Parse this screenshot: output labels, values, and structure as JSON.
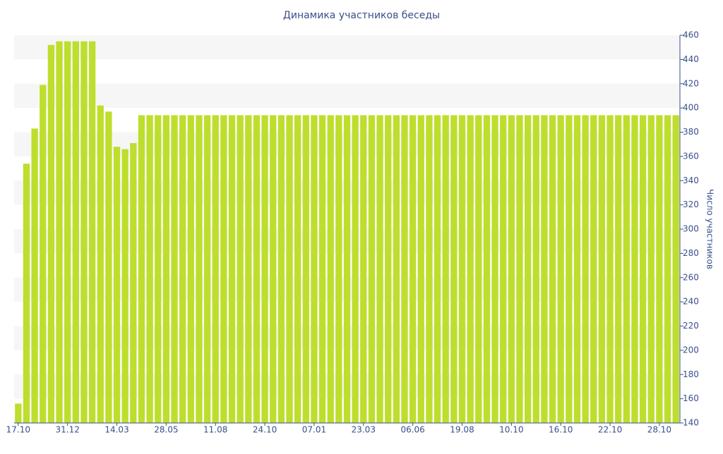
{
  "chart_data": {
    "type": "bar",
    "title": "Динамика участников беседы",
    "y_axis_label": "Число участников",
    "categories": [
      "17.10",
      null,
      null,
      null,
      null,
      null,
      "31.12",
      null,
      null,
      null,
      null,
      null,
      "14.03",
      null,
      null,
      null,
      null,
      null,
      "28.05",
      null,
      null,
      null,
      null,
      null,
      "11.08",
      null,
      null,
      null,
      null,
      null,
      "24.10",
      null,
      null,
      null,
      null,
      null,
      "07.01",
      null,
      null,
      null,
      null,
      null,
      "23.03",
      null,
      null,
      null,
      null,
      null,
      "06.06",
      null,
      null,
      null,
      null,
      null,
      "19.08",
      null,
      null,
      null,
      null,
      null,
      "10.10",
      null,
      null,
      null,
      null,
      null,
      "16.10",
      null,
      null,
      null,
      null,
      null,
      "22.10",
      null,
      null,
      null,
      null,
      null,
      "28.10",
      null,
      null
    ],
    "values": [
      156,
      354,
      383,
      419,
      452,
      455,
      455,
      455,
      455,
      455,
      402,
      397,
      368,
      366,
      371,
      394,
      394,
      394,
      394,
      394,
      394,
      394,
      394,
      394,
      394,
      394,
      394,
      394,
      394,
      394,
      394,
      394,
      394,
      394,
      394,
      394,
      394,
      394,
      394,
      394,
      394,
      394,
      394,
      394,
      394,
      394,
      394,
      394,
      394,
      394,
      394,
      394,
      394,
      394,
      394,
      394,
      394,
      394,
      394,
      394,
      394,
      394,
      394,
      394,
      394,
      394,
      394,
      394,
      394,
      394,
      394,
      394,
      394,
      394,
      394,
      394,
      394,
      394,
      394,
      394,
      394
    ],
    "color": "#bede2e",
    "ylim": [
      140,
      460
    ],
    "yticks": [
      140,
      160,
      180,
      200,
      220,
      240,
      260,
      280,
      300,
      320,
      340,
      360,
      380,
      400,
      420,
      440,
      460
    ],
    "y_axis_side": "right",
    "striped_background": true
  }
}
